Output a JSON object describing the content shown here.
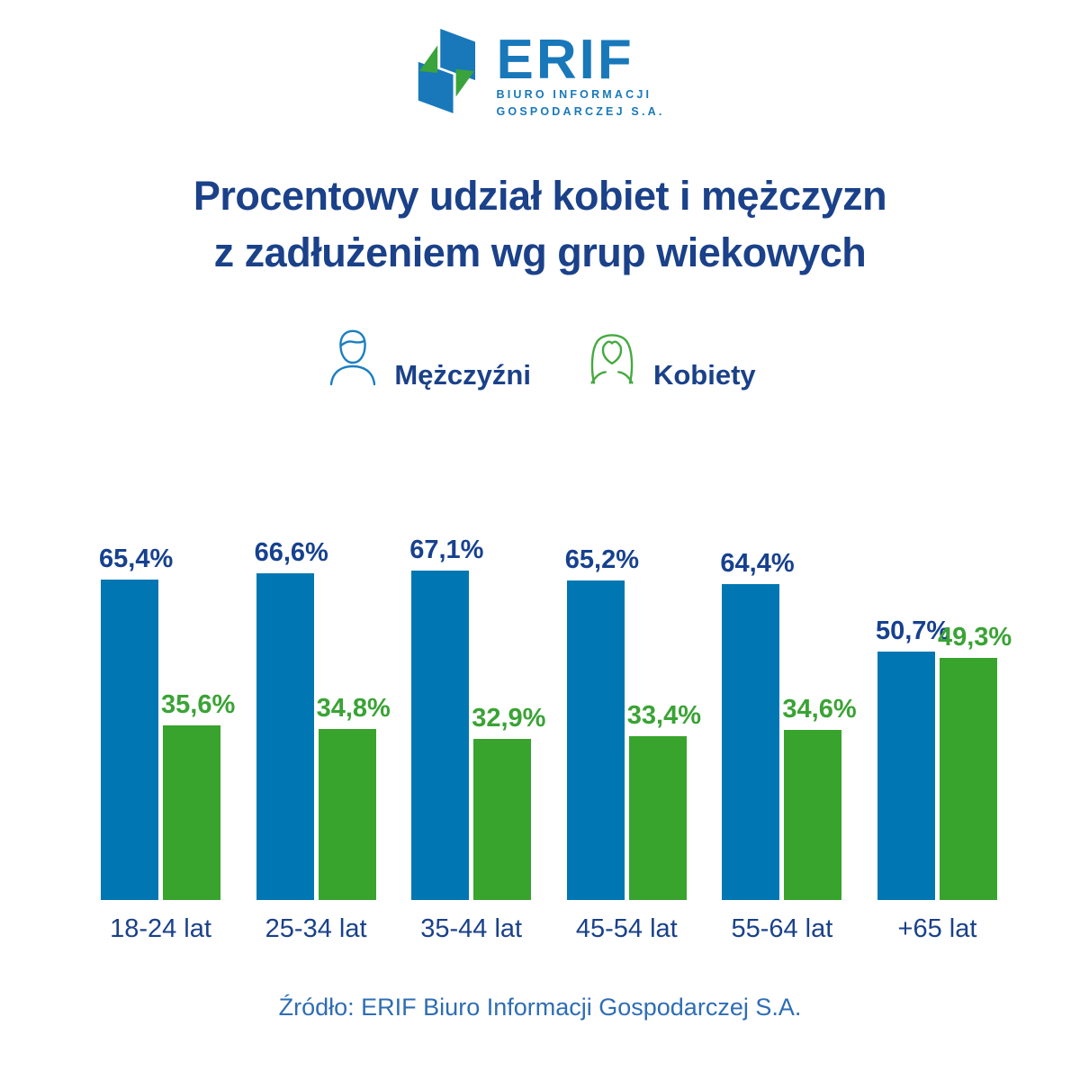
{
  "logo": {
    "brand": "ERIF",
    "subtitle_line1": "BIURO INFORMACJI",
    "subtitle_line2": "GOSPODARCZEJ S.A."
  },
  "title": {
    "line1": "Procentowy udział kobiet i mężczyzn",
    "line2": "z zadłużeniem wg grup wiekowych"
  },
  "legend": {
    "men_label": "Mężczyźni",
    "women_label": "Kobiety"
  },
  "source": "Źródło: ERIF Biuro Informacji Gospodarczej S.A.",
  "colors": {
    "title_navy": "#1a4189",
    "men_bar": "#0077b2",
    "women_bar": "#38a32d",
    "men_value_label": "#17418f",
    "women_value_label": "#3aa335",
    "category_label": "#1a4189",
    "source_text": "#2e6db4",
    "logo_blue": "#1878ba",
    "logo_green": "#3aa33c",
    "man_icon_stroke": "#1b7ec2",
    "woman_icon_stroke": "#44aa3f"
  },
  "chart_data": {
    "type": "bar",
    "title": "Procentowy udział kobiet i mężczyzn z zadłużeniem wg grup wiekowych",
    "categories": [
      "18-24 lat",
      "25-34 lat",
      "35-44 lat",
      "45-54 lat",
      "55-64 lat",
      "+65 lat"
    ],
    "series": [
      {
        "name": "Mężczyźni",
        "values": [
          65.4,
          66.6,
          67.1,
          65.2,
          64.4,
          50.7
        ],
        "labels": [
          "65,4%",
          "66,6%",
          "67,1%",
          "65,2%",
          "64,4%",
          "50,7%"
        ],
        "color": "#0077b2",
        "label_color": "#17418f"
      },
      {
        "name": "Kobiety",
        "values": [
          35.6,
          34.8,
          32.9,
          33.4,
          34.6,
          49.3
        ],
        "labels": [
          "35,6%",
          "34,8%",
          "32,9%",
          "33,4%",
          "34,6%",
          "49,3%"
        ],
        "color": "#38a32d",
        "label_color": "#3aa335"
      }
    ],
    "ylim": [
      0,
      70
    ],
    "grid": false,
    "axes_visible": false,
    "legend_position": "top",
    "value_label_format": "percent-comma-decimal"
  }
}
